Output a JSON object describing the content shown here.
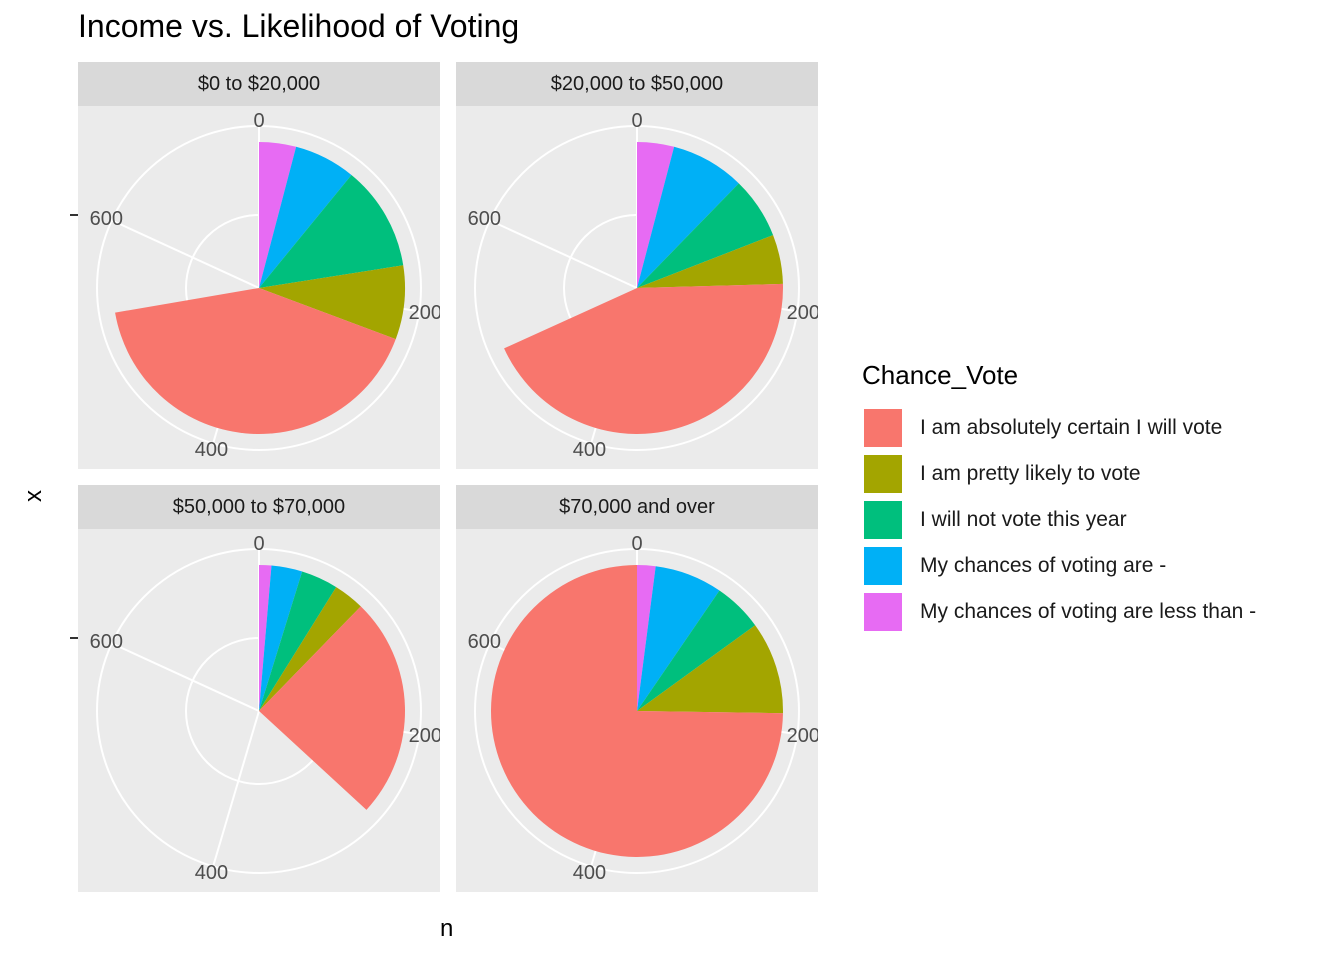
{
  "chart_data": {
    "type": "pie",
    "title": "Income vs. Likelihood of Voting",
    "xlabel": "n",
    "ylabel": "x",
    "y_tick_label": "-",
    "radial_axis": {
      "ticks": [
        0,
        200,
        400,
        600
      ],
      "max": 733
    },
    "legend": {
      "title": "Chance_Vote",
      "position": "right",
      "entries": [
        {
          "name": "I am absolutely certain I will vote",
          "color": "#F8766D"
        },
        {
          "name": "I am pretty likely to vote",
          "color": "#A3A500"
        },
        {
          "name": "I will not vote this year",
          "color": "#00BF7D"
        },
        {
          "name": "My chances of voting are -",
          "color": "#00B0F6"
        },
        {
          "name": "My chances of voting are less than -",
          "color": "#E76BF3"
        }
      ]
    },
    "categories": [
      "My chances of voting are less than -",
      "My chances of voting are -",
      "I will not vote this year",
      "I am pretty likely to vote",
      "I am absolutely certain I will vote"
    ],
    "facets": [
      {
        "label": "$0 to $20,000",
        "values": [
          30,
          50,
          85,
          60,
          305
        ]
      },
      {
        "label": "$20,000 to $50,000",
        "values": [
          30,
          60,
          50,
          40,
          320
        ]
      },
      {
        "label": "$50,000 to $70,000",
        "values": [
          10,
          25,
          30,
          25,
          180
        ]
      },
      {
        "label": "$70,000 and over",
        "values": [
          15,
          55,
          40,
          75,
          548
        ]
      }
    ]
  }
}
